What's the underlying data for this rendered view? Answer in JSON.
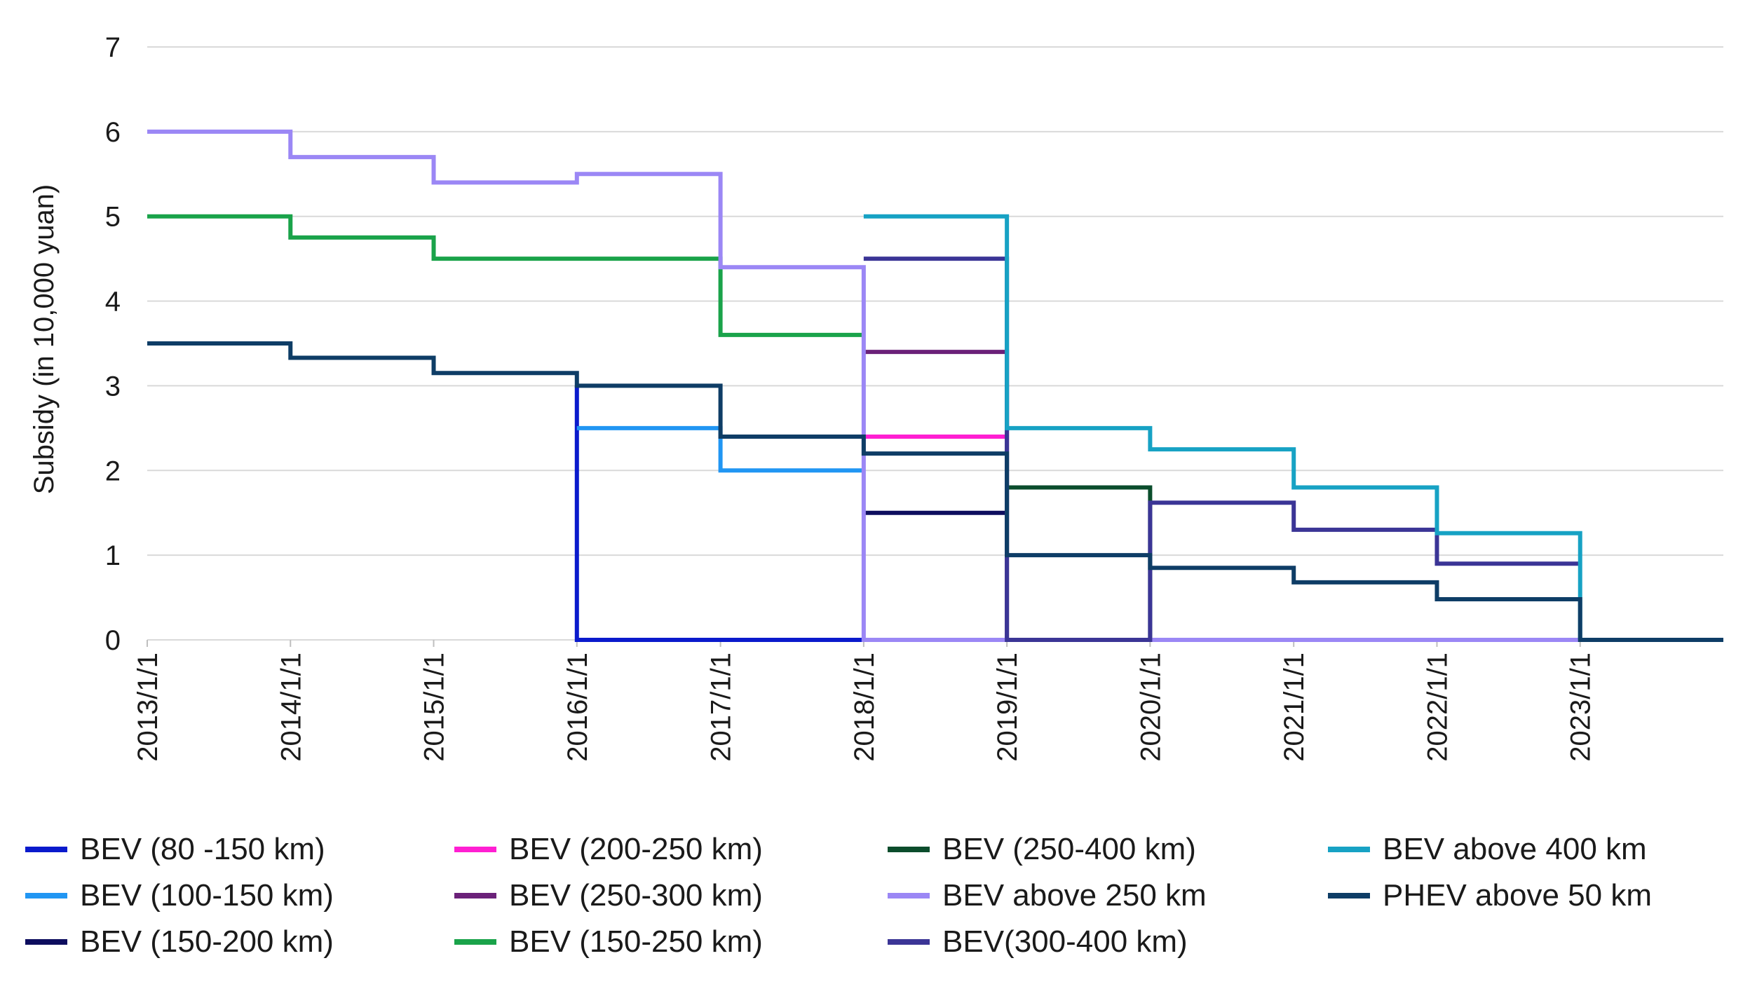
{
  "chart_data": {
    "type": "line",
    "step": true,
    "ylabel": "Subsidy (in 10,000 yuan)",
    "xlabel": "",
    "ylim": [
      0,
      7
    ],
    "yticks": [
      "0",
      "1",
      "2",
      "3",
      "4",
      "5",
      "6",
      "7"
    ],
    "x_end": "2024/1/1",
    "x_tick_labels": [
      "2013/1/1",
      "2014/1/1",
      "2015/1/1",
      "2016/1/1",
      "2017/1/1",
      "2018/1/1",
      "2019/1/1",
      "2020/1/1",
      "2021/1/1",
      "2022/1/1",
      "2023/1/1"
    ],
    "grid": "horizontal",
    "legend_position": "bottom",
    "series": [
      {
        "name": "BEV (80 -150 km)",
        "color": "#0a1acc",
        "points": [
          [
            "2016/1/1",
            3.0
          ],
          [
            "2016/1/1",
            0
          ],
          [
            "2018/1/1",
            0
          ]
        ]
      },
      {
        "name": "BEV (100-150 km)",
        "color": "#2196f3",
        "points": [
          [
            "2016/1/1",
            2.5
          ],
          [
            "2017/1/1",
            2.0
          ],
          [
            "2018/1/1",
            2.0
          ]
        ]
      },
      {
        "name": "BEV (150-200 km)",
        "color": "#0d0d5e",
        "points": [
          [
            "2018/1/1",
            1.5
          ],
          [
            "2019/1/1",
            1.5
          ]
        ]
      },
      {
        "name": "BEV (200-250 km)",
        "color": "#ff1fd2",
        "points": [
          [
            "2018/1/1",
            2.4
          ],
          [
            "2019/1/1",
            2.4
          ]
        ]
      },
      {
        "name": "BEV (250-300 km)",
        "color": "#6b2179",
        "points": [
          [
            "2018/1/1",
            3.4
          ],
          [
            "2019/1/1",
            0
          ]
        ]
      },
      {
        "name": "BEV (150-250 km)",
        "color": "#1aa34a",
        "points": [
          [
            "2013/1/1",
            5.0
          ],
          [
            "2014/1/1",
            4.75
          ],
          [
            "2015/1/1",
            4.5
          ],
          [
            "2017/1/1",
            3.6
          ],
          [
            "2018/1/1",
            3.6
          ]
        ]
      },
      {
        "name": "BEV (250-400 km)",
        "color": "#0b4d2c",
        "points": [
          [
            "2019/1/1",
            1.8
          ],
          [
            "2020/1/1",
            0
          ]
        ]
      },
      {
        "name": "BEV above 250 km",
        "color": "#9b87f5",
        "points": [
          [
            "2013/1/1",
            6.0
          ],
          [
            "2014/1/1",
            5.7
          ],
          [
            "2015/1/1",
            5.4
          ],
          [
            "2016/1/1",
            5.5
          ],
          [
            "2017/1/1",
            4.4
          ],
          [
            "2018/1/1",
            0
          ],
          [
            "2024/1/1",
            0
          ]
        ]
      },
      {
        "name": "BEV(300-400 km)",
        "color": "#3b3596",
        "points": [
          [
            "2018/1/1",
            4.5
          ],
          [
            "2019/1/1",
            0
          ],
          [
            "2020/1/1",
            1.62
          ],
          [
            "2021/1/1",
            1.3
          ],
          [
            "2022/1/1",
            0.9
          ],
          [
            "2023/1/1",
            0.9
          ]
        ]
      },
      {
        "name": "BEV above 400 km",
        "color": "#17a2c4",
        "points": [
          [
            "2018/1/1",
            5.0
          ],
          [
            "2019/1/1",
            2.5
          ],
          [
            "2020/1/1",
            2.25
          ],
          [
            "2021/1/1",
            1.8
          ],
          [
            "2022/1/1",
            1.26
          ],
          [
            "2023/1/1",
            0
          ]
        ]
      },
      {
        "name": "PHEV above 50 km",
        "color": "#0e3d66",
        "points": [
          [
            "2013/1/1",
            3.5
          ],
          [
            "2014/1/1",
            3.33
          ],
          [
            "2015/1/1",
            3.15
          ],
          [
            "2016/1/1",
            3.0
          ],
          [
            "2017/1/1",
            2.4
          ],
          [
            "2018/1/1",
            2.2
          ],
          [
            "2019/1/1",
            1.0
          ],
          [
            "2020/1/1",
            0.85
          ],
          [
            "2021/1/1",
            0.68
          ],
          [
            "2022/1/1",
            0.48
          ],
          [
            "2023/1/1",
            0
          ],
          [
            "2024/1/1",
            0
          ]
        ]
      }
    ]
  }
}
